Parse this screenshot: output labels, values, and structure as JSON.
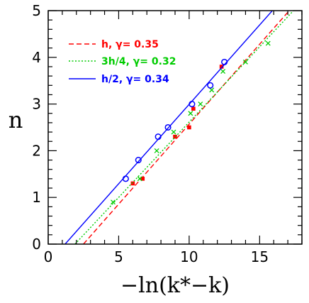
{
  "chart_data": {
    "type": "scatter",
    "title": "",
    "xlabel": "−ln(k*−k)",
    "ylabel": "n",
    "xlim": [
      0,
      18
    ],
    "ylim": [
      0,
      5
    ],
    "x_ticks": [
      0,
      5,
      10,
      15
    ],
    "y_ticks": [
      0,
      1,
      2,
      3,
      4,
      5
    ],
    "x_tick_labels": [
      "0",
      "5",
      "10",
      "15"
    ],
    "y_tick_labels": [
      "0",
      "1",
      "2",
      "3",
      "4",
      "5"
    ],
    "grid": false,
    "legend_position": "top-left",
    "series": [
      {
        "name": "h, γ= 0.35",
        "color": "#ff0000",
        "marker": "square",
        "line_style": "dashed",
        "points": [
          {
            "x": 6.0,
            "y": 1.3
          },
          {
            "x": 6.7,
            "y": 1.4
          },
          {
            "x": 9.0,
            "y": 2.3
          },
          {
            "x": 10.0,
            "y": 2.5
          },
          {
            "x": 10.3,
            "y": 2.9
          },
          {
            "x": 12.3,
            "y": 3.8
          }
        ],
        "fit": {
          "x": [
            2.5,
            17.1
          ],
          "y": [
            0,
            5
          ]
        }
      },
      {
        "name": "3h/4, γ= 0.32",
        "color": "#00cc00",
        "marker": "cross",
        "line_style": "dotted",
        "points": [
          {
            "x": 4.6,
            "y": 0.9
          },
          {
            "x": 6.5,
            "y": 1.4
          },
          {
            "x": 7.7,
            "y": 2.0
          },
          {
            "x": 8.9,
            "y": 2.4
          },
          {
            "x": 10.1,
            "y": 2.8
          },
          {
            "x": 10.8,
            "y": 3.0
          },
          {
            "x": 11.6,
            "y": 3.3
          },
          {
            "x": 12.4,
            "y": 3.7
          },
          {
            "x": 14.0,
            "y": 3.9
          },
          {
            "x": 15.6,
            "y": 4.3
          }
        ],
        "fit": {
          "x": [
            1.9,
            17.4
          ],
          "y": [
            0,
            5
          ]
        }
      },
      {
        "name": "h/2, γ= 0.34",
        "color": "#0000ff",
        "marker": "circle",
        "line_style": "solid",
        "points": [
          {
            "x": 5.5,
            "y": 1.4
          },
          {
            "x": 6.4,
            "y": 1.8
          },
          {
            "x": 7.8,
            "y": 2.3
          },
          {
            "x": 8.5,
            "y": 2.5
          },
          {
            "x": 10.2,
            "y": 3.0
          },
          {
            "x": 11.5,
            "y": 3.4
          },
          {
            "x": 12.5,
            "y": 3.9
          }
        ],
        "fit": {
          "x": [
            1.2,
            15.9
          ],
          "y": [
            0,
            5
          ]
        }
      }
    ]
  }
}
